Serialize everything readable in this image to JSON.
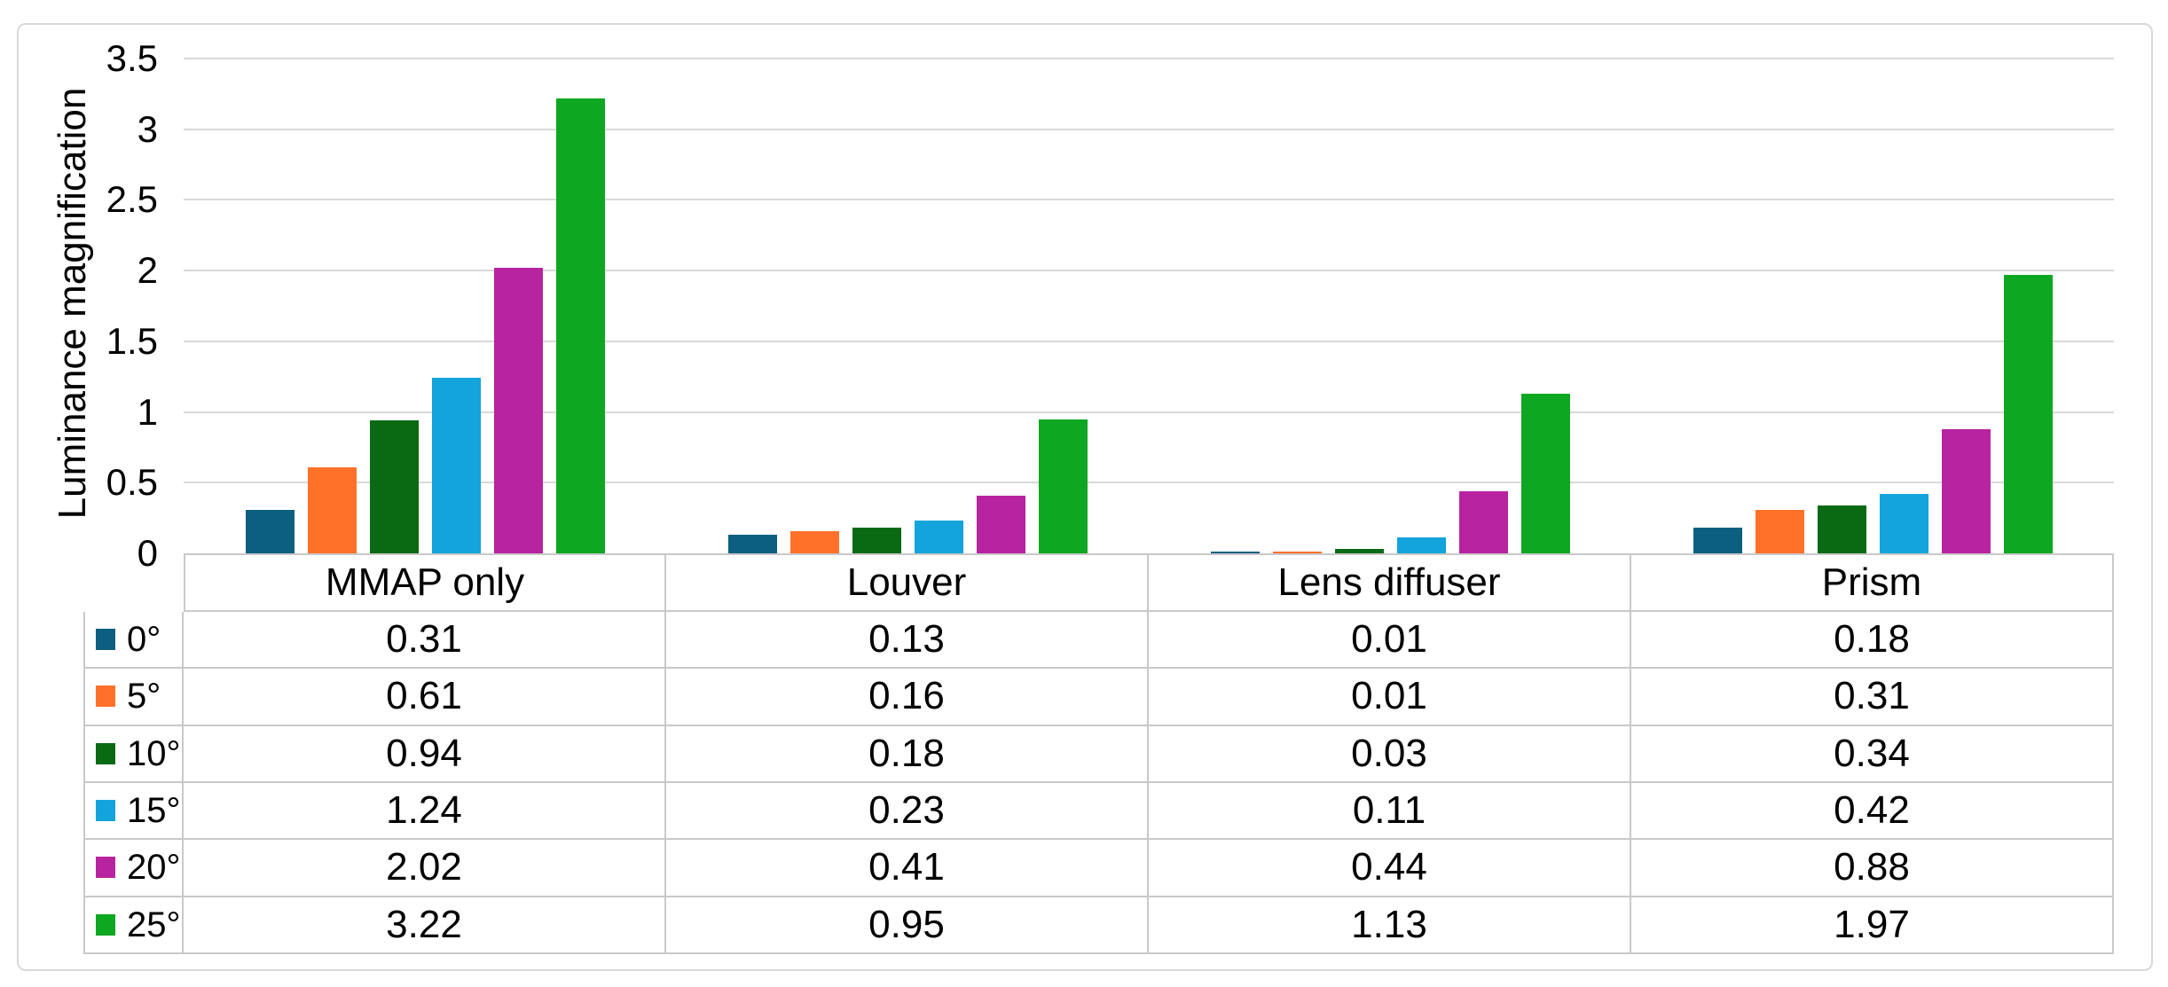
{
  "chart_data": {
    "type": "bar",
    "title": "",
    "xlabel": "",
    "ylabel": "Luminance magnification",
    "ylim": [
      0,
      3.5
    ],
    "ytick_values": [
      3.5,
      3,
      2.5,
      2,
      1.5,
      1,
      0.5,
      0
    ],
    "ytick_labels": [
      "3.5",
      "3",
      "2.5",
      "2",
      "1.5",
      "1",
      "0.5",
      "0"
    ],
    "grid": true,
    "legend_position": "data-table-left",
    "data_table": true,
    "value_format_decimals": 2,
    "categories": [
      "MMAP only",
      "Louver",
      "Lens diffuser",
      "Prism"
    ],
    "series": [
      {
        "name": "0°",
        "color": "#0C5F80",
        "values": [
          0.31,
          0.13,
          0.01,
          0.18
        ]
      },
      {
        "name": "5°",
        "color": "#FF7129",
        "values": [
          0.61,
          0.16,
          0.01,
          0.31
        ]
      },
      {
        "name": "10°",
        "color": "#0A6A14",
        "values": [
          0.94,
          0.18,
          0.03,
          0.34
        ]
      },
      {
        "name": "15°",
        "color": "#12A4DB",
        "values": [
          1.24,
          0.23,
          0.11,
          0.42
        ]
      },
      {
        "name": "20°",
        "color": "#B8239F",
        "values": [
          2.02,
          0.41,
          0.44,
          0.88
        ]
      },
      {
        "name": "25°",
        "color": "#0EA722",
        "values": [
          3.22,
          0.95,
          1.13,
          1.97
        ]
      }
    ]
  },
  "style": {
    "gridline_color": "#D9D9D9",
    "table_border_color": "#C9C9C9",
    "frame_border_color": "#D9D9D9",
    "background": "#FFFFFF",
    "text_color": "#000000"
  }
}
